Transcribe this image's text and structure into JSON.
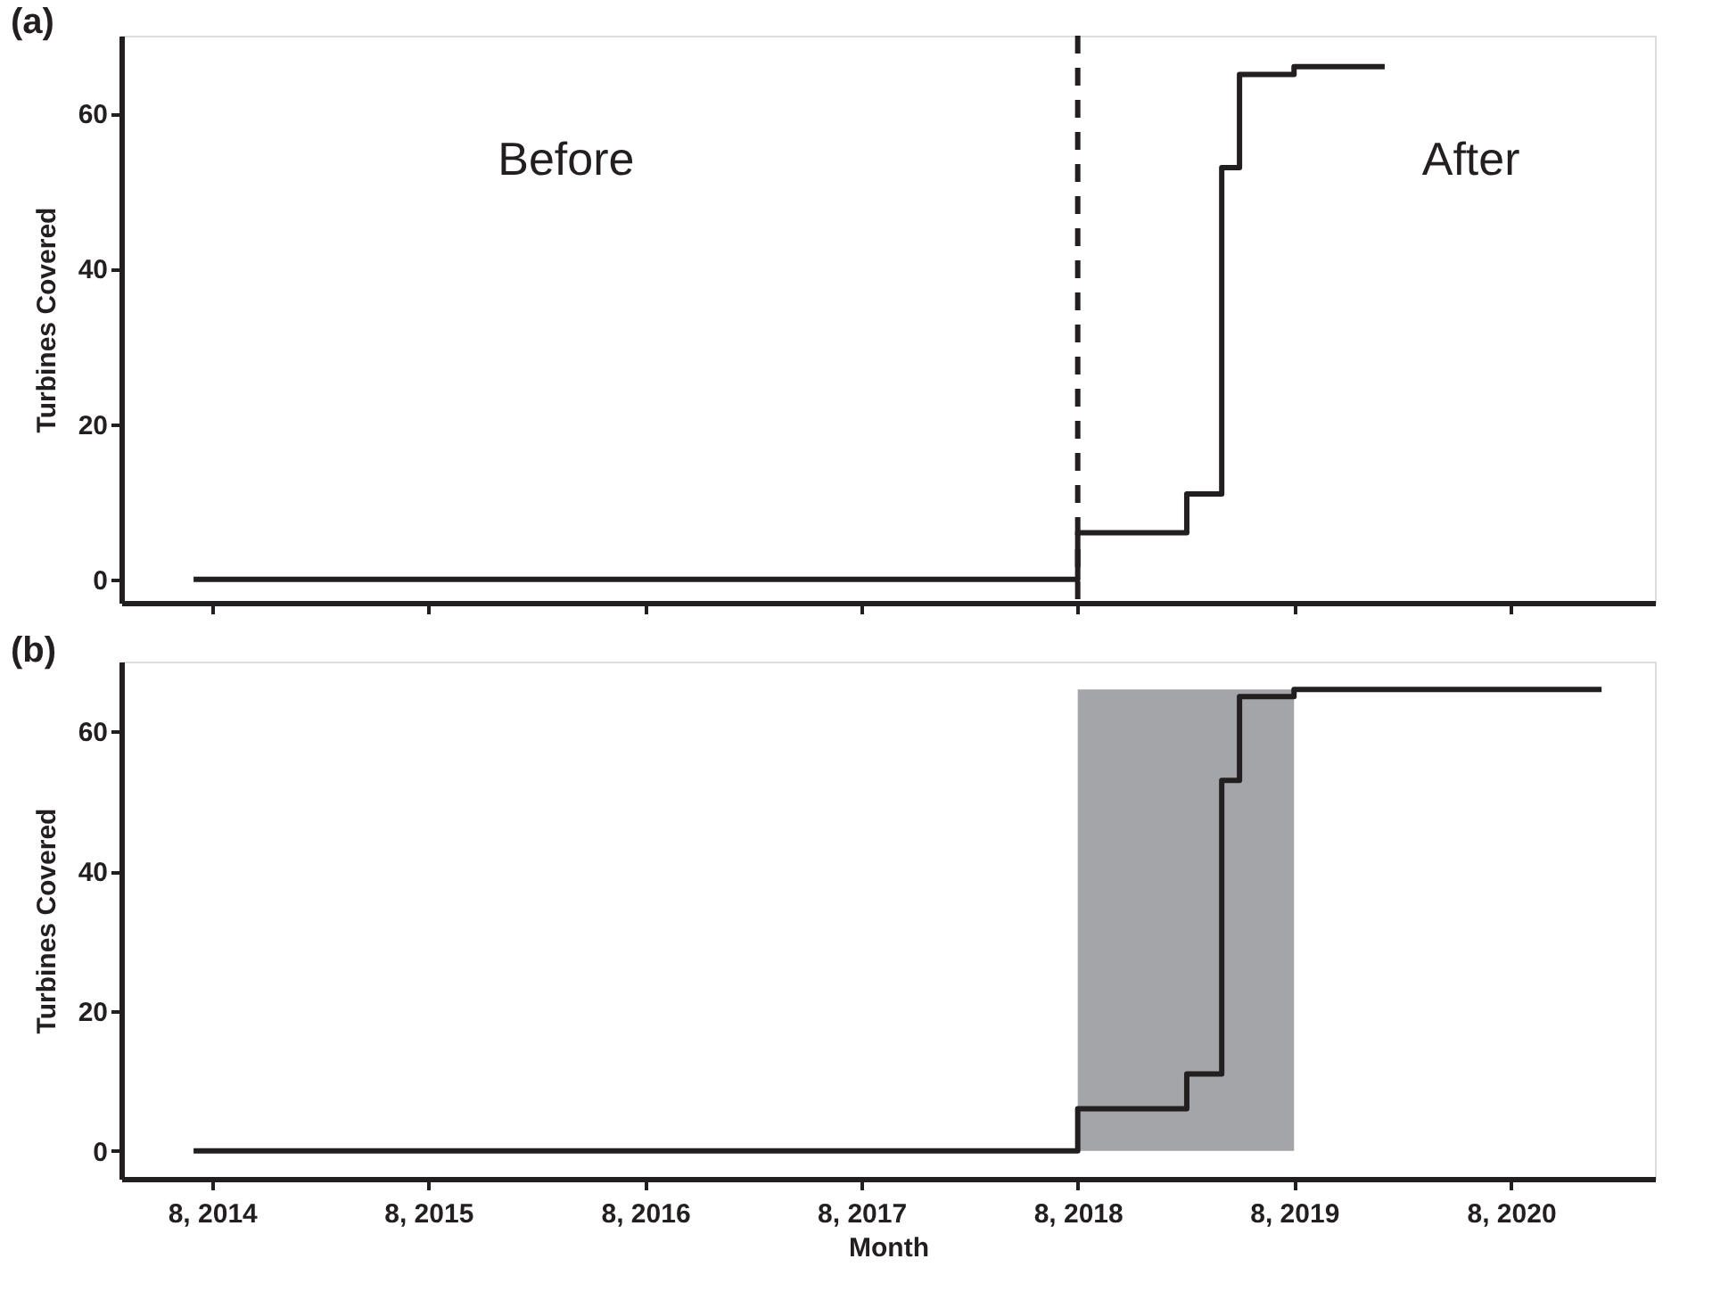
{
  "chart_data": [
    {
      "type": "step",
      "title": "(a)",
      "ylabel": "Turbines Covered",
      "x": [
        "2014-07",
        "2018-08",
        "2019-02",
        "2019-04",
        "2019-05",
        "2019-08",
        "2020-01"
      ],
      "series": [
        {
          "color": "#231f20",
          "values": [
            0,
            6,
            11,
            53,
            65,
            66,
            66
          ]
        }
      ],
      "xlim": [
        "2014-03",
        "2021-04"
      ],
      "xticks": [
        {
          "value": "2014-08",
          "label": null
        },
        {
          "value": "2015-08",
          "label": null
        },
        {
          "value": "2016-08",
          "label": null
        },
        {
          "value": "2017-08",
          "label": null
        },
        {
          "value": "2018-08",
          "label": null
        },
        {
          "value": "2019-08",
          "label": null
        },
        {
          "value": "2020-08",
          "label": null
        }
      ],
      "ylim": [
        -3,
        70
      ],
      "yticks": [
        0,
        20,
        40,
        60
      ],
      "ref_lines": [
        {
          "axis": "x",
          "value": "2018-08",
          "color": "#231f20",
          "line_style": "dashed"
        }
      ],
      "annotations": [
        "Before",
        "After"
      ],
      "tick_labels": "y",
      "grid": false,
      "legend": false,
      "line_style": "solid",
      "marker": "none"
    },
    {
      "type": "step",
      "title": "(b)",
      "xlabel": "Month",
      "ylabel": "Turbines Covered",
      "x": [
        "2014-07",
        "2018-08",
        "2019-02",
        "2019-04",
        "2019-05",
        "2019-08",
        "2021-01"
      ],
      "series": [
        {
          "color": "#231f20",
          "values": [
            0,
            6,
            11,
            53,
            65,
            66,
            66
          ]
        }
      ],
      "xlim": [
        "2014-03",
        "2021-04"
      ],
      "xticks": [
        {
          "value": "2014-08",
          "label": "8, 2014"
        },
        {
          "value": "2015-08",
          "label": "8, 2015"
        },
        {
          "value": "2016-08",
          "label": "8, 2016"
        },
        {
          "value": "2017-08",
          "label": "8, 2017"
        },
        {
          "value": "2018-08",
          "label": "8, 2018"
        },
        {
          "value": "2019-08",
          "label": "8, 2019"
        },
        {
          "value": "2020-08",
          "label": "8, 2020"
        }
      ],
      "ylim": [
        -4,
        70
      ],
      "yticks": [
        0,
        20,
        40,
        60
      ],
      "bands": [
        {
          "axis": "x",
          "from": "2018-08",
          "to": "2019-08",
          "color": "#a4a5a8"
        }
      ],
      "grid": false,
      "legend": false,
      "line_style": "solid",
      "marker": "none"
    }
  ]
}
